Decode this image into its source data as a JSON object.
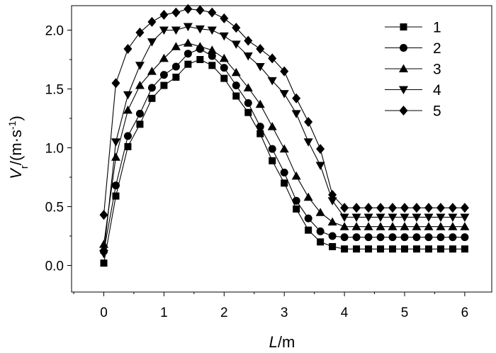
{
  "chart_data": {
    "type": "line",
    "xlabel": {
      "var": "L",
      "unit": "/m"
    },
    "ylabel": {
      "var": "V",
      "sub": "r",
      "unit_pre": "/(m·s",
      "sup": "-1",
      "unit_post": ")"
    },
    "xlim": [
      -0.55,
      6.45
    ],
    "ylim": [
      -0.25,
      2.25
    ],
    "xticks": [
      "0",
      "1",
      "2",
      "3",
      "4",
      "5",
      "6"
    ],
    "yticks": [
      "0.0",
      "0.5",
      "1.0",
      "1.5",
      "2.0"
    ],
    "x": [
      0,
      0.2,
      0.4,
      0.6,
      0.8,
      1.0,
      1.2,
      1.4,
      1.6,
      1.8,
      2.0,
      2.2,
      2.4,
      2.6,
      2.8,
      3.0,
      3.2,
      3.4,
      3.6,
      3.8,
      4.0,
      4.2,
      4.4,
      4.6,
      4.8,
      5.0,
      5.2,
      5.4,
      5.6,
      5.8,
      6.0
    ],
    "series": [
      {
        "name": "1",
        "marker": "square",
        "values": [
          0.02,
          0.59,
          1.01,
          1.2,
          1.42,
          1.53,
          1.6,
          1.71,
          1.75,
          1.7,
          1.59,
          1.44,
          1.3,
          1.12,
          0.89,
          0.7,
          0.48,
          0.3,
          0.2,
          0.16,
          0.14,
          0.14,
          0.14,
          0.14,
          0.14,
          0.14,
          0.14,
          0.14,
          0.14,
          0.14,
          0.14
        ]
      },
      {
        "name": "2",
        "marker": "circle",
        "values": [
          0.12,
          0.68,
          1.1,
          1.29,
          1.51,
          1.62,
          1.69,
          1.8,
          1.84,
          1.78,
          1.68,
          1.53,
          1.38,
          1.18,
          0.99,
          0.79,
          0.55,
          0.4,
          0.29,
          0.25,
          0.24,
          0.24,
          0.24,
          0.24,
          0.24,
          0.24,
          0.24,
          0.24,
          0.24,
          0.24,
          0.24
        ]
      },
      {
        "name": "3",
        "marker": "triangle-up",
        "values": [
          0.18,
          0.92,
          1.32,
          1.53,
          1.65,
          1.76,
          1.86,
          1.89,
          1.86,
          1.83,
          1.76,
          1.64,
          1.51,
          1.37,
          1.18,
          0.99,
          0.76,
          0.58,
          0.45,
          0.37,
          0.33,
          0.33,
          0.33,
          0.33,
          0.33,
          0.33,
          0.33,
          0.33,
          0.33,
          0.33,
          0.33
        ]
      },
      {
        "name": "4",
        "marker": "triangle-down",
        "values": [
          0.1,
          1.05,
          1.45,
          1.7,
          1.9,
          2.0,
          2.0,
          2.03,
          2.01,
          2.0,
          1.95,
          1.88,
          1.78,
          1.69,
          1.57,
          1.46,
          1.29,
          1.05,
          0.85,
          0.55,
          0.41,
          0.41,
          0.41,
          0.41,
          0.41,
          0.41,
          0.41,
          0.41,
          0.41,
          0.41,
          0.41
        ]
      },
      {
        "name": "5",
        "marker": "diamond",
        "values": [
          0.43,
          1.55,
          1.84,
          1.98,
          2.07,
          2.13,
          2.15,
          2.18,
          2.17,
          2.15,
          2.1,
          2.02,
          1.91,
          1.84,
          1.76,
          1.65,
          1.42,
          1.22,
          0.99,
          0.6,
          0.49,
          0.49,
          0.49,
          0.49,
          0.49,
          0.49,
          0.49,
          0.49,
          0.49,
          0.49,
          0.49
        ]
      }
    ],
    "legend": "top-right",
    "grid": false
  }
}
